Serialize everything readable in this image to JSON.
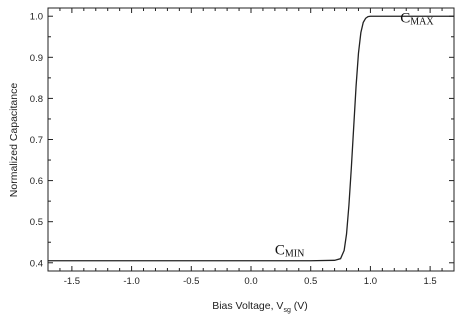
{
  "chart_data": {
    "type": "line",
    "title": "",
    "xlabel": "Bias Voltage, V",
    "xlabel_sub": "sg",
    "xlabel_unit": " (V)",
    "ylabel": "Normalized Capacitance",
    "xlim": [
      -1.7,
      1.7
    ],
    "ylim": [
      0.38,
      1.02
    ],
    "x_ticks": [
      "-1.5",
      "-1.0",
      "-0.5",
      "0.0",
      "0.5",
      "1.0",
      "1.5"
    ],
    "x_tick_values": [
      -1.5,
      -1.0,
      -0.5,
      0.0,
      0.5,
      1.0,
      1.5
    ],
    "y_ticks": [
      "0.4",
      "0.5",
      "0.6",
      "0.7",
      "0.8",
      "0.9",
      "1.0"
    ],
    "y_tick_values": [
      0.4,
      0.5,
      0.6,
      0.7,
      0.8,
      0.9,
      1.0
    ],
    "grid": false,
    "legend": "none",
    "line_color": "#222222",
    "series": [
      {
        "x": [
          -1.7,
          0.5,
          0.7,
          0.75,
          0.78,
          0.8,
          0.82,
          0.84,
          0.86,
          0.88,
          0.9,
          0.92,
          0.94,
          0.96,
          0.98,
          1.0,
          1.7
        ],
        "y": [
          0.405,
          0.405,
          0.406,
          0.41,
          0.43,
          0.47,
          0.54,
          0.63,
          0.73,
          0.83,
          0.91,
          0.96,
          0.985,
          0.995,
          0.999,
          1.0,
          1.0
        ]
      }
    ],
    "annotations": [
      {
        "text": "C",
        "sub": "MIN",
        "x": 0.2,
        "y": 0.42
      },
      {
        "text": "C",
        "sub": "MAX",
        "x": 1.25,
        "y": 0.985
      }
    ]
  }
}
